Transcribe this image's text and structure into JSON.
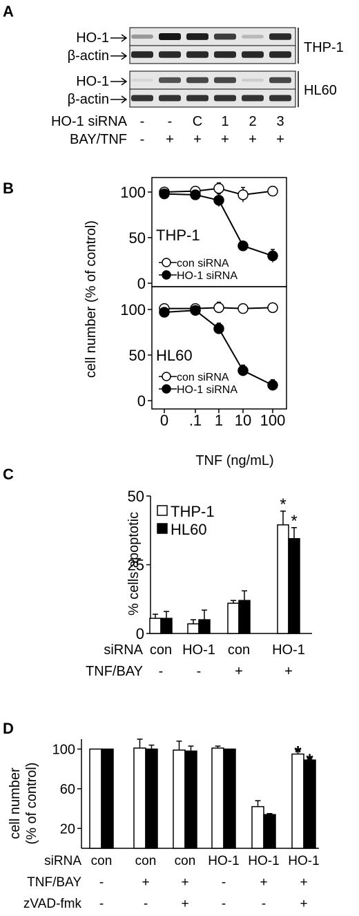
{
  "figure": {
    "panel_labels": [
      "A",
      "B",
      "C",
      "D"
    ]
  },
  "panel_a": {
    "protein_labels": [
      "HO-1",
      "β-actin",
      "HO-1",
      "β-actin"
    ],
    "cell_lines": [
      "THP-1",
      "HL60"
    ],
    "row_labels": [
      "HO-1 siRNA",
      "BAY/TNF"
    ],
    "sirna_marks": [
      "-",
      "-",
      "C",
      "1",
      "2",
      "3"
    ],
    "bay_tnf_marks": [
      "-",
      "+",
      "+",
      "+",
      "+",
      "+"
    ],
    "blots": [
      {
        "name": "THP-1 HO-1",
        "intensity": [
          0.35,
          1.0,
          0.95,
          0.8,
          0.2,
          0.9
        ]
      },
      {
        "name": "THP-1 β-actin",
        "intensity": [
          0.9,
          0.9,
          0.9,
          0.9,
          0.9,
          0.9
        ]
      },
      {
        "name": "HL60 HO-1",
        "intensity": [
          0.05,
          0.7,
          0.75,
          0.75,
          0.1,
          0.75
        ]
      },
      {
        "name": "HL60 β-actin",
        "intensity": [
          0.85,
          0.85,
          0.85,
          0.85,
          0.85,
          0.85
        ]
      }
    ]
  },
  "panel_b": {
    "ylabel": "cell number (% of control)",
    "xlabel": "TNF (ng/mL)",
    "x_ticks": [
      "0",
      ".1",
      "1",
      "10",
      "100"
    ],
    "y_ticks": [
      "0",
      "50",
      "100"
    ],
    "legend": [
      "con siRNA",
      "HO-1 siRNA"
    ]
  },
  "panel_c": {
    "ylabel": "% cells apoptotic",
    "y_ticks": [
      "0",
      "25",
      "50"
    ],
    "row_labels": [
      "siRNA",
      "TNF/BAY"
    ],
    "sirna": [
      "con",
      "HO-1",
      "con",
      "HO-1"
    ],
    "tnf_bay": [
      "-",
      "-",
      "+",
      "+"
    ],
    "legend": [
      "THP-1",
      "HL60"
    ],
    "marker": "*"
  },
  "panel_d": {
    "ylabel_lines": [
      "cell number",
      "(% of control)"
    ],
    "y_ticks": [
      "20",
      "60",
      "100"
    ],
    "row_labels": [
      "siRNA",
      "TNF/BAY",
      "zVAD-fmk"
    ],
    "sirna": [
      "con",
      "con",
      "con",
      "HO-1",
      "HO-1",
      "HO-1"
    ],
    "tnf_bay": [
      "-",
      "+",
      "+",
      "-",
      "+",
      "+"
    ],
    "zvad": [
      "-",
      "-",
      "+",
      "-",
      "-",
      "+"
    ],
    "marker": "*"
  },
  "chart_data": [
    {
      "type": "line",
      "panel": "B",
      "subplot": "THP-1",
      "x": [
        "0",
        ".1",
        "1",
        "10",
        "100"
      ],
      "ylabel": "cell number (% of control)",
      "xlabel": "TNF (ng/mL)",
      "ylim": [
        0,
        110
      ],
      "series": [
        {
          "name": "con siRNA",
          "values": [
            100,
            101,
            104,
            97,
            101
          ],
          "errors": [
            4,
            4,
            6,
            8,
            5
          ],
          "marker": "open"
        },
        {
          "name": "HO-1 siRNA",
          "values": [
            98,
            97,
            91,
            41,
            30
          ],
          "errors": [
            4,
            3,
            7,
            2,
            7
          ],
          "marker": "filled"
        }
      ]
    },
    {
      "type": "line",
      "panel": "B",
      "subplot": "HL60",
      "x": [
        "0",
        ".1",
        "1",
        "10",
        "100"
      ],
      "ylabel": "cell number (% of control)",
      "xlabel": "TNF (ng/mL)",
      "ylim": [
        0,
        110
      ],
      "series": [
        {
          "name": "con siRNA",
          "values": [
            101,
            101,
            102,
            101,
            102
          ],
          "errors": [
            3,
            3,
            6,
            5,
            3
          ],
          "marker": "open"
        },
        {
          "name": "HO-1 siRNA",
          "values": [
            97,
            99,
            79,
            33,
            17
          ],
          "errors": [
            3,
            2,
            6,
            6,
            6
          ],
          "marker": "filled"
        }
      ]
    },
    {
      "type": "bar",
      "panel": "C",
      "categories": [
        "con / -",
        "HO-1 / -",
        "con / +",
        "HO-1 / +"
      ],
      "ylabel": "% cells apoptotic",
      "ylim": [
        0,
        50
      ],
      "series": [
        {
          "name": "THP-1",
          "values": [
            5.5,
            3.5,
            11,
            39.5
          ],
          "errors": [
            1.5,
            1.5,
            1,
            5
          ]
        },
        {
          "name": "HL60",
          "values": [
            5.5,
            5,
            12,
            34.5
          ],
          "errors": [
            2.5,
            3.5,
            3.5,
            4
          ]
        }
      ],
      "significant": [
        3
      ]
    },
    {
      "type": "bar",
      "panel": "D",
      "categories": [
        "con / - / -",
        "con / + / -",
        "con / + / +",
        "HO-1 / - / -",
        "HO-1 / + / -",
        "HO-1 / + / +"
      ],
      "ylabel": "cell number (% of control)",
      "ylim": [
        0,
        110
      ],
      "series": [
        {
          "name": "white",
          "values": [
            100,
            101,
            99,
            101,
            42,
            95
          ],
          "errors": [
            0,
            9,
            9,
            2,
            6,
            4
          ]
        },
        {
          "name": "black",
          "values": [
            100,
            100,
            98,
            100,
            34,
            89
          ],
          "errors": [
            0,
            4,
            5,
            0,
            1,
            2
          ]
        }
      ],
      "significant": [
        5
      ]
    }
  ]
}
